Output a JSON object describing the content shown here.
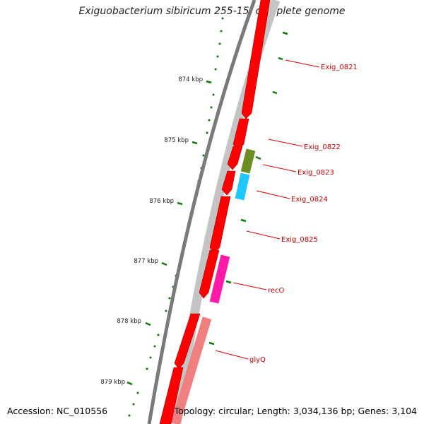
{
  "title": "Exiguobacterium sibiricum 255-15, complete genome",
  "accession_text": "Accession: NC_010556",
  "topology_text": "Topology: circular; Length: 3,034,136 bp; Genes: 3,104",
  "colors": {
    "forward_gene": "#ff0000",
    "reverse_gene_grey": "#c0c0c0",
    "reverse_gene_green": "#6b8e23",
    "reverse_gene_blue": "#1ec8ff",
    "reverse_gene_magenta": "#ff1aa8",
    "reverse_gene_pink": "#f08080",
    "label_red": "#cc0000",
    "tick_green": "#0a7a0a",
    "backbone_grey": "#808080"
  },
  "scale": {
    "unit": "kbp",
    "labels": [
      "874 kbp",
      "875 kbp",
      "876 kbp",
      "877 kbp",
      "878 kbp",
      "879 kbp"
    ]
  },
  "gene_labels": [
    "Exig_0821",
    "Exig_0822",
    "Exig_0823",
    "Exig_0824",
    "Exig_0825",
    "recO",
    "glyQ"
  ]
}
